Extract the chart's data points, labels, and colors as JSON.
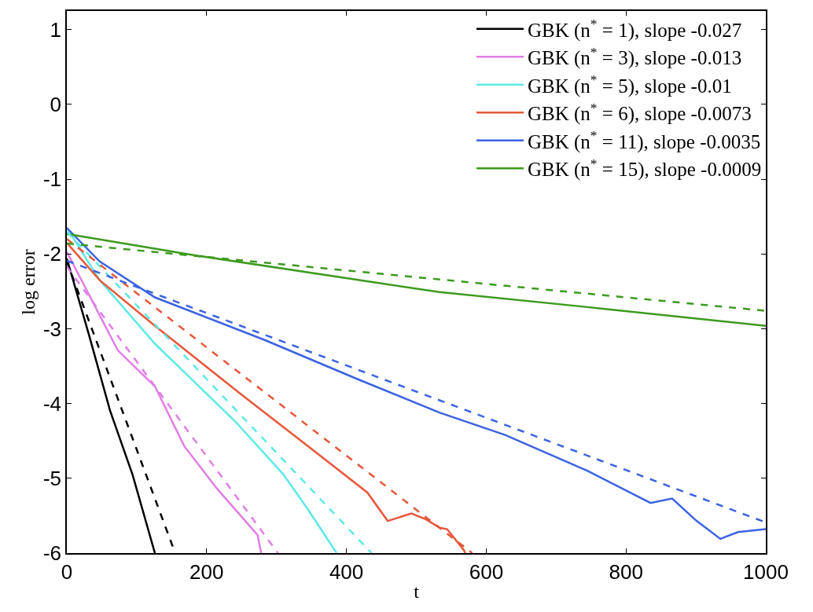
{
  "chart_data": {
    "type": "line",
    "xlabel": "t",
    "ylabel": "log error",
    "xlim": [
      0,
      1000
    ],
    "xticks": [
      0,
      200,
      400,
      600,
      800,
      1000
    ],
    "ylim": [
      -6,
      1.25
    ],
    "yticks": [
      -6,
      -5,
      -4,
      -3,
      -2,
      -1,
      0,
      1
    ],
    "legend": "top right",
    "marker": "none",
    "series": [
      {
        "name": "GBK (n$^{*}$ = 1), slope -0.027",
        "color": "#000000",
        "line_style": "solid",
        "x": [
          0,
          31,
          62,
          94,
          126
        ],
        "values": [
          -2.06,
          -3.06,
          -4.1,
          -4.95,
          -6.0
        ]
      },
      {
        "name": "GBK (n$^{*}$ = 3), slope -0.013",
        "color": "#e07ee6",
        "line_style": "solid",
        "x": [
          0,
          73,
          126,
          168,
          215,
          273,
          278
        ],
        "values": [
          -1.97,
          -3.29,
          -3.77,
          -4.57,
          -5.14,
          -5.76,
          -6.0
        ]
      },
      {
        "name": "GBK (n$^{*}$ = 5), slope -0.01",
        "color": "#5ee8e8",
        "line_style": "solid",
        "x": [
          0,
          47,
          126,
          241,
          310,
          346,
          386
        ],
        "values": [
          -1.65,
          -2.35,
          -3.2,
          -4.24,
          -4.95,
          -5.43,
          -6.0
        ]
      },
      {
        "name": "GBK (n$^{*}$ = 6), slope -0.0073",
        "color": "#e5573a",
        "line_style": "solid",
        "x": [
          0,
          47,
          126,
          247,
          352,
          430,
          459,
          493,
          514,
          533,
          544,
          568,
          570
        ],
        "values": [
          -1.85,
          -2.35,
          -2.96,
          -3.86,
          -4.62,
          -5.19,
          -5.57,
          -5.47,
          -5.55,
          -5.66,
          -5.68,
          -5.96,
          -6.0
        ]
      },
      {
        "name": "GBK (n$^{*}$ = 11), slope -0.0035",
        "color": "#3b63e0",
        "line_style": "solid",
        "x": [
          0,
          47,
          126,
          283,
          415,
          533,
          627,
          745,
          835,
          866,
          901,
          935,
          960,
          1000
        ],
        "values": [
          -1.65,
          -2.1,
          -2.58,
          -3.15,
          -3.67,
          -4.12,
          -4.42,
          -4.9,
          -5.33,
          -5.27,
          -5.57,
          -5.81,
          -5.72,
          -5.68
        ]
      },
      {
        "name": "GBK (n$^{*}$ = 15), slope -0.0009",
        "color": "#3c9a1e",
        "line_style": "solid",
        "x": [
          0,
          178,
          533,
          745,
          1000
        ],
        "values": [
          -1.73,
          -2.01,
          -2.51,
          -2.71,
          -2.96
        ]
      },
      {
        "color": "#000000",
        "line_style": "dashed",
        "x": [
          0,
          155
        ],
        "values": [
          -2.1,
          -6.0
        ]
      },
      {
        "color": "#e07ee6",
        "line_style": "dashed",
        "x": [
          0,
          302
        ],
        "values": [
          -2.17,
          -6.0
        ]
      },
      {
        "color": "#5ee8e8",
        "line_style": "dashed",
        "x": [
          0,
          436
        ],
        "values": [
          -1.7,
          -6.0
        ]
      },
      {
        "color": "#e5573a",
        "line_style": "dashed",
        "x": [
          0,
          580
        ],
        "values": [
          -1.8,
          -6.0
        ]
      },
      {
        "color": "#3b63e0",
        "line_style": "dashed",
        "x": [
          0,
          1000
        ],
        "values": [
          -2.09,
          -5.59
        ]
      },
      {
        "color": "#3c9a1e",
        "line_style": "dashed",
        "x": [
          0,
          1000
        ],
        "values": [
          -1.86,
          -2.76
        ]
      }
    ]
  }
}
